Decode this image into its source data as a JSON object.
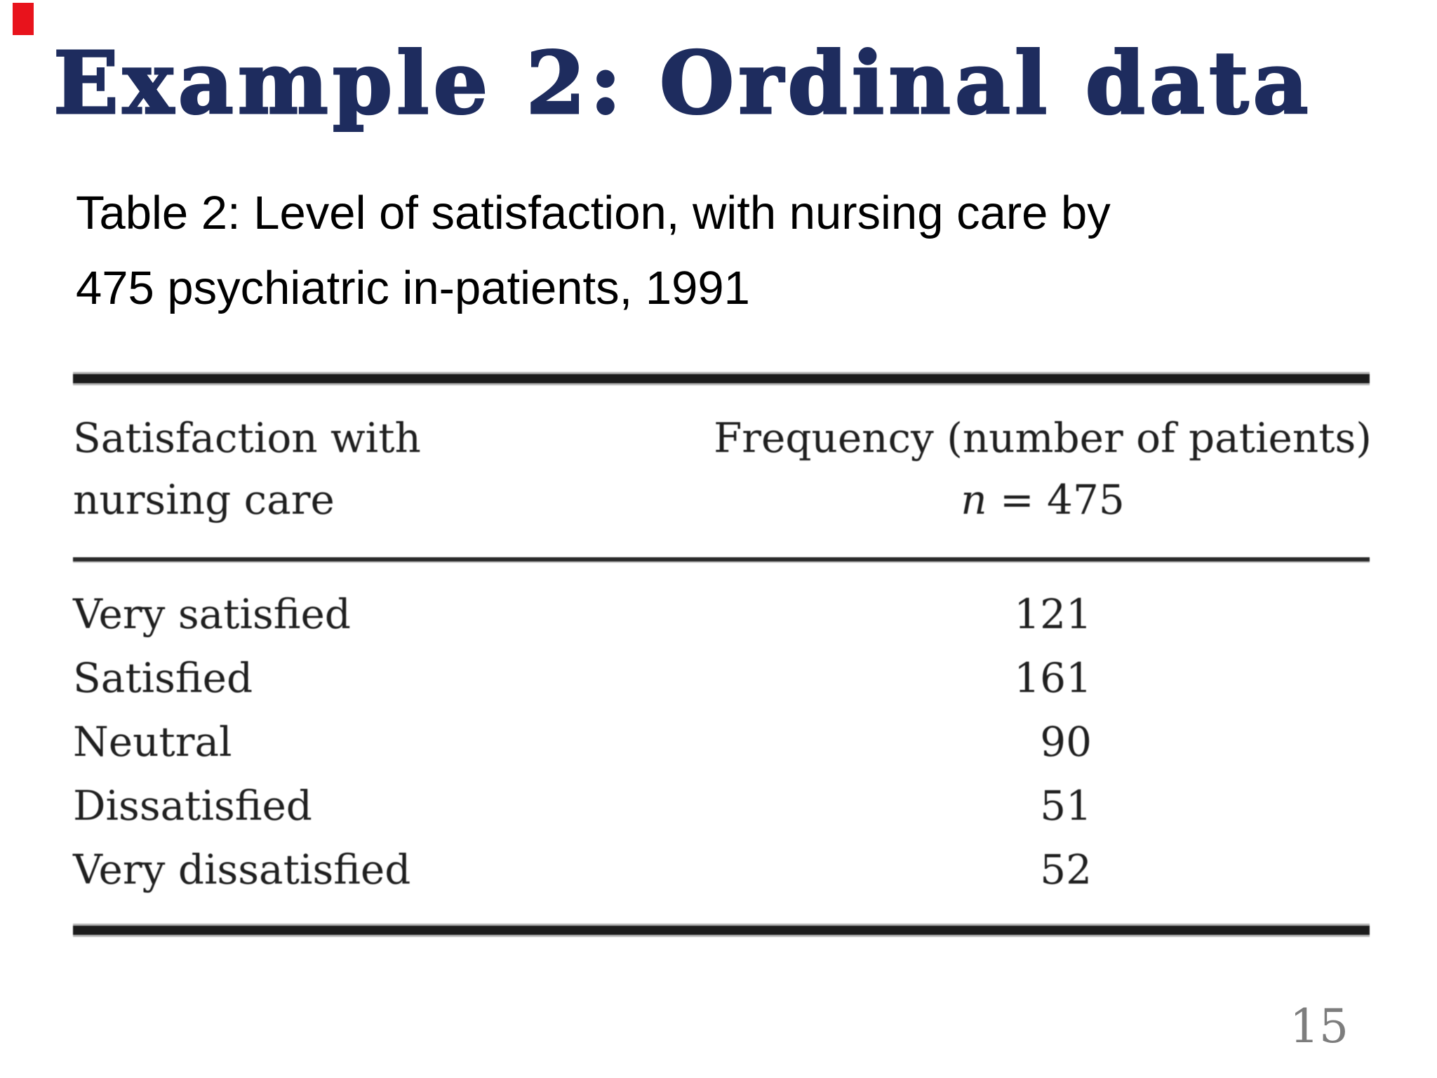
{
  "slide": {
    "title": "Example 2: Ordinal data",
    "subtitle_line1": "Table 2: Level  of satisfaction, with nursing care by",
    "subtitle_line2": "475 psychiatric in-patients, 1991",
    "page_number": "15"
  },
  "table": {
    "header": {
      "col1_line1": "Satisfaction with",
      "col1_line2": "nursing care",
      "col2_line1": "Frequency (number of patients)",
      "col2_line2_var": "n",
      "col2_line2_rest": " = 475"
    },
    "rows": [
      {
        "label": "Very satisfied",
        "value": "121"
      },
      {
        "label": "Satisfied",
        "value": "161"
      },
      {
        "label": "Neutral",
        "value": "90"
      },
      {
        "label": "Dissatisfied",
        "value": "51"
      },
      {
        "label": "Very dissatisfied",
        "value": "52"
      }
    ]
  },
  "colors": {
    "title_navy": "#1e2c5e",
    "corner_mark_red": "#e8131c",
    "body_text": "#000000",
    "table_text": "#1f1f1f",
    "rule_black": "#1c1c1c",
    "page_number_gray": "#7d7d7d",
    "background": "#ffffff"
  }
}
